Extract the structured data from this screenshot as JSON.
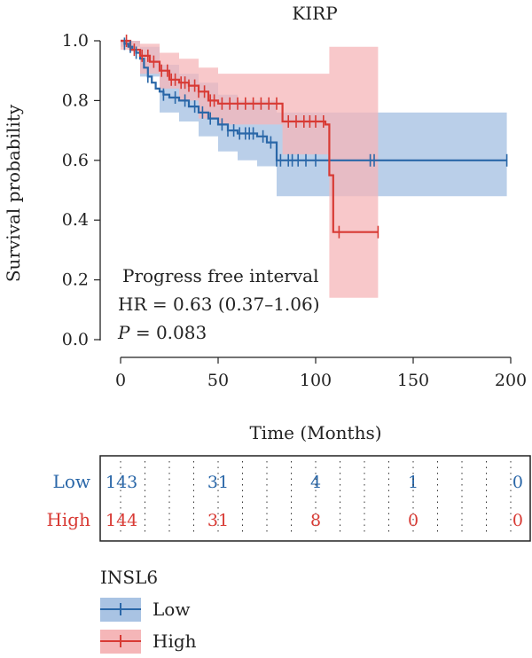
{
  "chart_data": {
    "type": "line",
    "title": "KIRP",
    "xlabel": "Time (Months)",
    "ylabel": "Survival probability",
    "xlim": [
      -8,
      205
    ],
    "ylim": [
      -0.04,
      1.04
    ],
    "xticks": [
      0,
      50,
      100,
      150,
      200
    ],
    "yticks": [
      0.0,
      0.2,
      0.4,
      0.6,
      0.8,
      1.0
    ],
    "ytick_labels": [
      "0.0",
      "0.2",
      "0.4",
      "0.6",
      "0.8",
      "1.0"
    ],
    "annotation": {
      "line1": "Progress free interval",
      "line2": "HR = 0.63 (0.37–1.06)",
      "p_label": "P",
      "p_value": " = 0.083"
    },
    "series": [
      {
        "name": "Low",
        "color": "#2a67a8",
        "ci_color": "#a9c3e3",
        "steps": [
          [
            0,
            1.0
          ],
          [
            2,
            0.99
          ],
          [
            4,
            0.98
          ],
          [
            6,
            0.97
          ],
          [
            8,
            0.96
          ],
          [
            10,
            0.94
          ],
          [
            12,
            0.91
          ],
          [
            14,
            0.88
          ],
          [
            16,
            0.86
          ],
          [
            18,
            0.84
          ],
          [
            20,
            0.83
          ],
          [
            22,
            0.82
          ],
          [
            25,
            0.81
          ],
          [
            30,
            0.8
          ],
          [
            35,
            0.78
          ],
          [
            40,
            0.76
          ],
          [
            45,
            0.74
          ],
          [
            50,
            0.72
          ],
          [
            55,
            0.7
          ],
          [
            60,
            0.69
          ],
          [
            70,
            0.68
          ],
          [
            75,
            0.66
          ],
          [
            80,
            0.6
          ],
          [
            198,
            0.6
          ]
        ],
        "ci_upper": [
          [
            0,
            1.0
          ],
          [
            10,
            0.98
          ],
          [
            20,
            0.92
          ],
          [
            30,
            0.89
          ],
          [
            40,
            0.86
          ],
          [
            50,
            0.82
          ],
          [
            60,
            0.8
          ],
          [
            70,
            0.8
          ],
          [
            80,
            0.76
          ],
          [
            198,
            0.76
          ]
        ],
        "ci_lower": [
          [
            0,
            0.98
          ],
          [
            10,
            0.88
          ],
          [
            20,
            0.76
          ],
          [
            30,
            0.73
          ],
          [
            40,
            0.68
          ],
          [
            50,
            0.63
          ],
          [
            60,
            0.6
          ],
          [
            70,
            0.58
          ],
          [
            80,
            0.48
          ],
          [
            198,
            0.48
          ]
        ],
        "censor_times": [
          2,
          5,
          8,
          14,
          22,
          28,
          33,
          38,
          42,
          46,
          52,
          55,
          58,
          61,
          64,
          66,
          68,
          73,
          77,
          80,
          82,
          86,
          88,
          91,
          95,
          100,
          128,
          130,
          198
        ]
      },
      {
        "name": "High",
        "color": "#d83a34",
        "ci_color": "#f5b6b8",
        "steps": [
          [
            0,
            1.0
          ],
          [
            5,
            0.97
          ],
          [
            10,
            0.95
          ],
          [
            15,
            0.93
          ],
          [
            20,
            0.9
          ],
          [
            25,
            0.87
          ],
          [
            30,
            0.86
          ],
          [
            35,
            0.85
          ],
          [
            40,
            0.83
          ],
          [
            45,
            0.8
          ],
          [
            50,
            0.79
          ],
          [
            83,
            0.73
          ],
          [
            105,
            0.72
          ],
          [
            107,
            0.55
          ],
          [
            109,
            0.36
          ],
          [
            132,
            0.36
          ]
        ],
        "ci_upper": [
          [
            0,
            1.0
          ],
          [
            10,
            0.99
          ],
          [
            20,
            0.96
          ],
          [
            30,
            0.94
          ],
          [
            40,
            0.91
          ],
          [
            50,
            0.89
          ],
          [
            83,
            0.89
          ],
          [
            107,
            0.98
          ],
          [
            132,
            0.98
          ]
        ],
        "ci_lower": [
          [
            0,
            0.97
          ],
          [
            10,
            0.89
          ],
          [
            20,
            0.84
          ],
          [
            30,
            0.8
          ],
          [
            40,
            0.74
          ],
          [
            50,
            0.72
          ],
          [
            83,
            0.62
          ],
          [
            107,
            0.14
          ],
          [
            132,
            0.14
          ]
        ],
        "censor_times": [
          3,
          7,
          11,
          14,
          17,
          21,
          24,
          26,
          28,
          31,
          33,
          35,
          38,
          40,
          43,
          46,
          48,
          52,
          56,
          60,
          64,
          68,
          72,
          76,
          80,
          86,
          90,
          94,
          97,
          100,
          104,
          112,
          132
        ]
      }
    ],
    "risk_table": {
      "times": [
        0,
        50,
        100,
        150,
        200
      ],
      "rows": [
        {
          "label": "Low",
          "counts": [
            "143",
            "31",
            "4",
            "1",
            "0"
          ]
        },
        {
          "label": "High",
          "counts": [
            "144",
            "31",
            "8",
            "0",
            "0"
          ]
        }
      ]
    },
    "legend": {
      "title": "INSL6",
      "placement": "bottom-left",
      "entries": [
        "Low",
        "High"
      ]
    }
  }
}
